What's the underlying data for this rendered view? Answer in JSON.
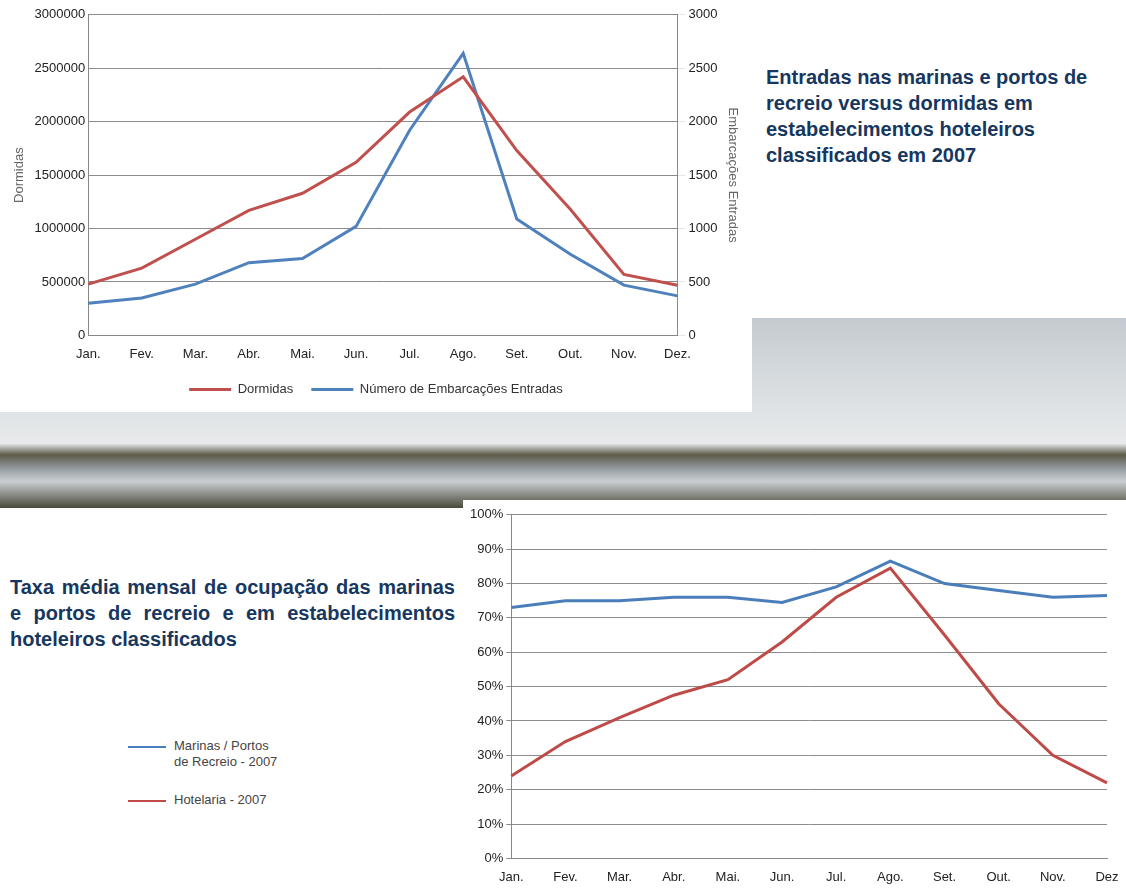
{
  "chart_data": [
    {
      "type": "line",
      "title": "Entradas nas marinas e portos de recreio versus dormidas em estabelecimentos hoteleiros classificados em 2007",
      "categories": [
        "Jan.",
        "Fev.",
        "Mar.",
        "Abr.",
        "Mai.",
        "Jun.",
        "Jul.",
        "Ago.",
        "Set.",
        "Out.",
        "Nov.",
        "Dez."
      ],
      "series": [
        {
          "name": "Dormidas",
          "color": "#c0504d",
          "axis": "y",
          "values": [
            480000,
            630000,
            900000,
            1170000,
            1330000,
            1620000,
            2090000,
            2420000,
            1730000,
            1180000,
            570000,
            470000
          ]
        },
        {
          "name": "Número de Embarcações Entradas",
          "color": "#4f81bd",
          "axis": "y2",
          "values": [
            300,
            350,
            480,
            680,
            720,
            1020,
            1920,
            2640,
            1090,
            760,
            470,
            370
          ]
        }
      ],
      "ylabel": "Dormidas",
      "y2label": "Embarcações Entradas",
      "ylim": [
        0,
        3000000
      ],
      "yticks": [
        0,
        500000,
        1000000,
        1500000,
        2000000,
        2500000,
        3000000
      ],
      "y2lim": [
        0,
        3000
      ],
      "y2ticks": [
        0,
        500,
        1000,
        1500,
        2000,
        2500,
        3000
      ],
      "grid": true,
      "legend": "bottom"
    },
    {
      "type": "line",
      "title": "Taxa média mensal de ocupação das marinas e portos de recreio e em estabelecimentos hoteleiros classificados",
      "categories": [
        "Jan.",
        "Fev.",
        "Mar.",
        "Abr.",
        "Mai.",
        "Jun.",
        "Jul.",
        "Ago.",
        "Set.",
        "Out.",
        "Nov.",
        "Dez"
      ],
      "series": [
        {
          "name": "Marinas / Portos de Recreio - 2007",
          "color": "#4a7ebb",
          "values": [
            73,
            75,
            75,
            76,
            76,
            74.5,
            79,
            86.5,
            80,
            78,
            76,
            76.5
          ]
        },
        {
          "name": "Hotelaria - 2007",
          "color": "#be4b48",
          "values": [
            24,
            34,
            41,
            47.5,
            52,
            63,
            76,
            84.5,
            65,
            45,
            30,
            22
          ]
        }
      ],
      "ylim": [
        0,
        100
      ],
      "yticks": [
        {
          "value": 0,
          "label": "0%"
        },
        {
          "value": 10,
          "label": "10%"
        },
        {
          "value": 20,
          "label": "20%"
        },
        {
          "value": 30,
          "label": "30%"
        },
        {
          "value": 40,
          "label": "40%"
        },
        {
          "value": 50,
          "label": "50%"
        },
        {
          "value": 60,
          "label": "60%"
        },
        {
          "value": 70,
          "label": "70%"
        },
        {
          "value": 80,
          "label": "80%"
        },
        {
          "value": 90,
          "label": "90%"
        },
        {
          "value": 100,
          "label": "100%"
        }
      ],
      "grid": true,
      "legend": "left"
    }
  ]
}
